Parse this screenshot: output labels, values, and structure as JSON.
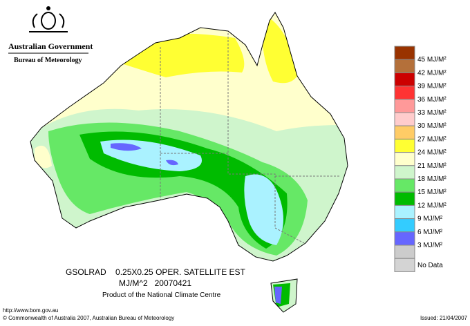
{
  "header": {
    "agency": "Australian Government",
    "bureau": "Bureau of Meteorology"
  },
  "legend": {
    "items": [
      {
        "color": "#993300",
        "label": "45 MJ/M²"
      },
      {
        "color": "#b4703a",
        "label": "42 MJ/M²"
      },
      {
        "color": "#cc0000",
        "label": "39 MJ/M²"
      },
      {
        "color": "#ff3333",
        "label": "36 MJ/M²"
      },
      {
        "color": "#ff9999",
        "label": "33 MJ/M²"
      },
      {
        "color": "#ffcccc",
        "label": "30 MJ/M²"
      },
      {
        "color": "#ffcc66",
        "label": "27 MJ/M²"
      },
      {
        "color": "#ffff33",
        "label": "24 MJ/M²"
      },
      {
        "color": "#ffffcc",
        "label": "21 MJ/M²"
      },
      {
        "color": "#cff5cc",
        "label": "18 MJ/M²"
      },
      {
        "color": "#66e866",
        "label": "15 MJ/M²"
      },
      {
        "color": "#00bb00",
        "label": "12 MJ/M²"
      },
      {
        "color": "#aaf2ff",
        "label": "9 MJ/M²"
      },
      {
        "color": "#33ccff",
        "label": "6 MJ/M²"
      },
      {
        "color": "#6666ff",
        "label": "3 MJ/M²"
      },
      {
        "color": "#cccccc",
        "label": "No Data"
      }
    ],
    "last_color": "#d4d4d4"
  },
  "caption": {
    "line1": "GSOLRAD    0.25X0.25 OPER. SATELLITE EST",
    "line2": "MJ/M^2   20070421",
    "line3": "Product of the National Climate Centre"
  },
  "footer": {
    "url": "http://www.bom.gov.au",
    "copyright": "© Commonwealth of Australia 2007, Australian Bureau of Meteorology",
    "issued": "Issued: 21/04/2007"
  }
}
